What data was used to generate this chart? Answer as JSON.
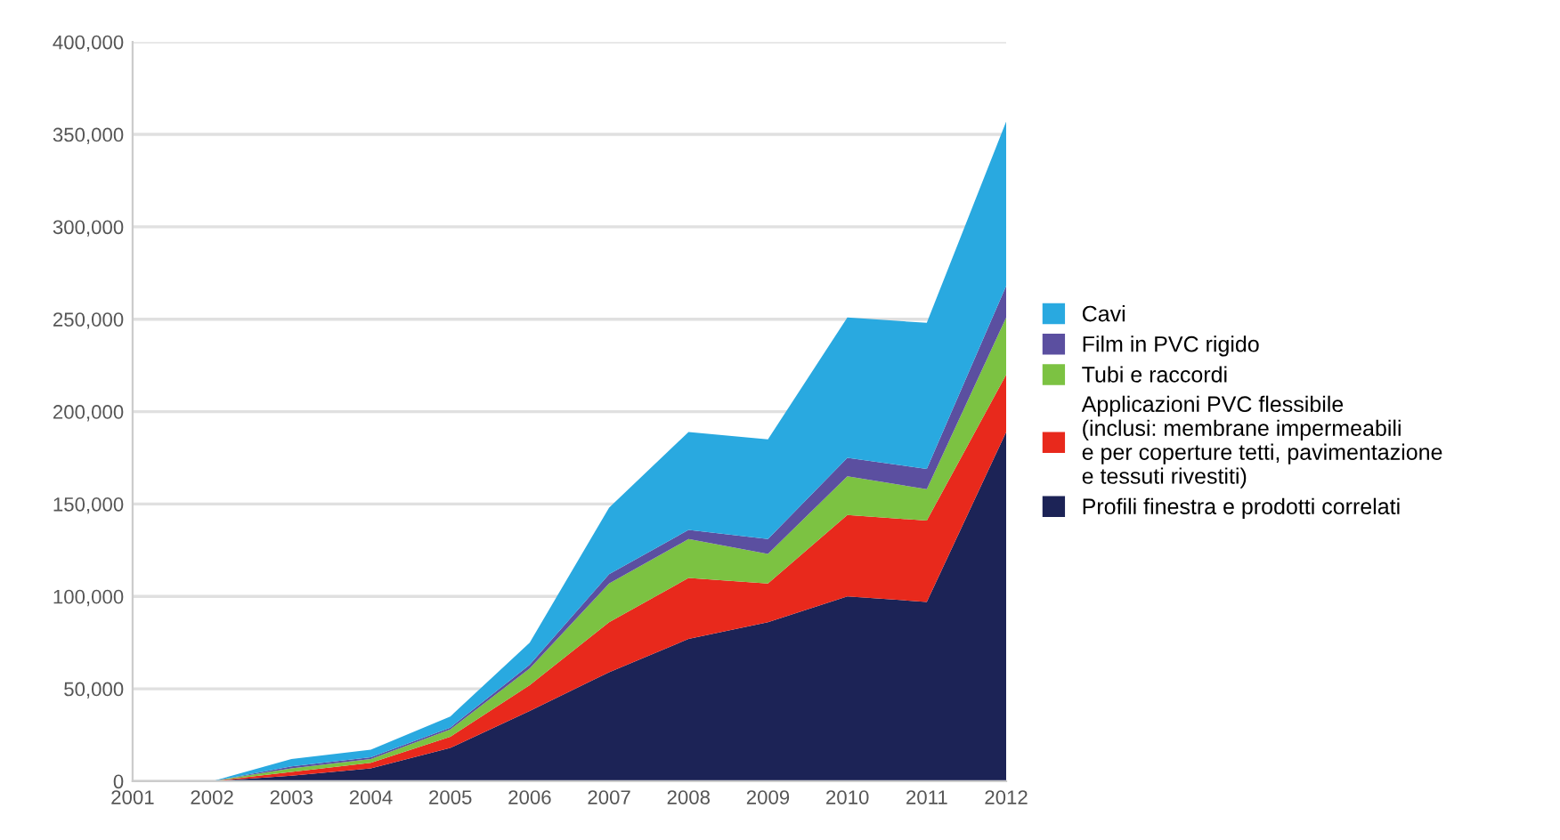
{
  "chart_data": {
    "type": "area",
    "stacked": true,
    "categories": [
      "2001",
      "2002",
      "2003",
      "2004",
      "2005",
      "2006",
      "2007",
      "2008",
      "2009",
      "2010",
      "2011",
      "2012"
    ],
    "series": [
      {
        "name": "Profili finestra e prodotti correlati",
        "color": "#1c2356",
        "values": [
          0,
          0,
          3000,
          7000,
          18000,
          38000,
          59000,
          77000,
          86000,
          100000,
          97000,
          189000
        ]
      },
      {
        "name": "Applicazioni PVC flessibile\n(inclusi: membrane impermeabili\ne per coperture tetti, pavimentazione\ne tessuti rivestiti)",
        "color": "#e8291c",
        "values": [
          0,
          0,
          2000,
          3000,
          6000,
          14000,
          27000,
          33000,
          21000,
          44000,
          44000,
          31000
        ]
      },
      {
        "name": "Tubi e raccordi",
        "color": "#7cc242",
        "values": [
          0,
          0,
          2000,
          2000,
          4000,
          9000,
          21000,
          21000,
          16000,
          21000,
          17000,
          31000
        ]
      },
      {
        "name": "Film in PVC rigido",
        "color": "#5b4fa0",
        "values": [
          0,
          0,
          1000,
          1000,
          1000,
          2000,
          5000,
          5000,
          8000,
          10000,
          11000,
          17000
        ]
      },
      {
        "name": "Cavi",
        "color": "#29a9e0",
        "values": [
          0,
          0,
          4000,
          4000,
          6000,
          12000,
          36000,
          53000,
          54000,
          76000,
          79000,
          89000
        ]
      }
    ],
    "ylim": [
      0,
      400000
    ],
    "yticks": [
      {
        "value": 0,
        "label": "0"
      },
      {
        "value": 50000,
        "label": "50,000"
      },
      {
        "value": 100000,
        "label": "100,000"
      },
      {
        "value": 150000,
        "label": "150,000"
      },
      {
        "value": 200000,
        "label": "200,000"
      },
      {
        "value": 250000,
        "label": "250,000"
      },
      {
        "value": 300000,
        "label": "300,000"
      },
      {
        "value": 350000,
        "label": "350,000"
      },
      {
        "value": 400000,
        "label": "400,000"
      }
    ],
    "grid": "y",
    "legend": "right"
  }
}
